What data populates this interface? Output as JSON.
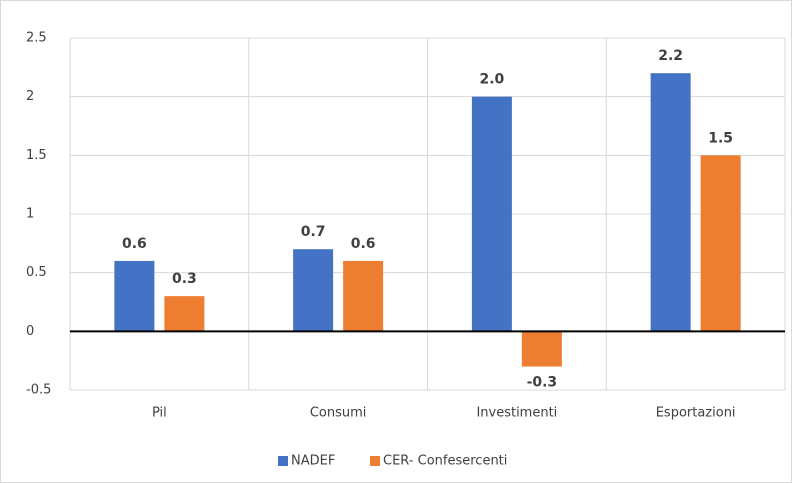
{
  "chart_data": {
    "type": "bar",
    "categories": [
      "Pil",
      "Consumi",
      "Investimenti",
      "Esportazioni"
    ],
    "series": [
      {
        "name": "NADEF",
        "color": "#4472c4",
        "values": [
          0.6,
          0.7,
          2.0,
          2.2
        ],
        "value_labels": [
          "0.6",
          "0.7",
          "2.0",
          "2.2"
        ]
      },
      {
        "name": "CER- Confesercenti",
        "color": "#ed7d31",
        "values": [
          0.3,
          0.6,
          -0.3,
          1.5
        ],
        "value_labels": [
          "0.3",
          "0.6",
          "-0.3",
          "1.5"
        ]
      }
    ],
    "ylim": [
      -0.5,
      2.5
    ],
    "yticks": [
      -0.5,
      0,
      0.5,
      1,
      1.5,
      2,
      2.5
    ],
    "grid": true,
    "legend": "bottom"
  }
}
